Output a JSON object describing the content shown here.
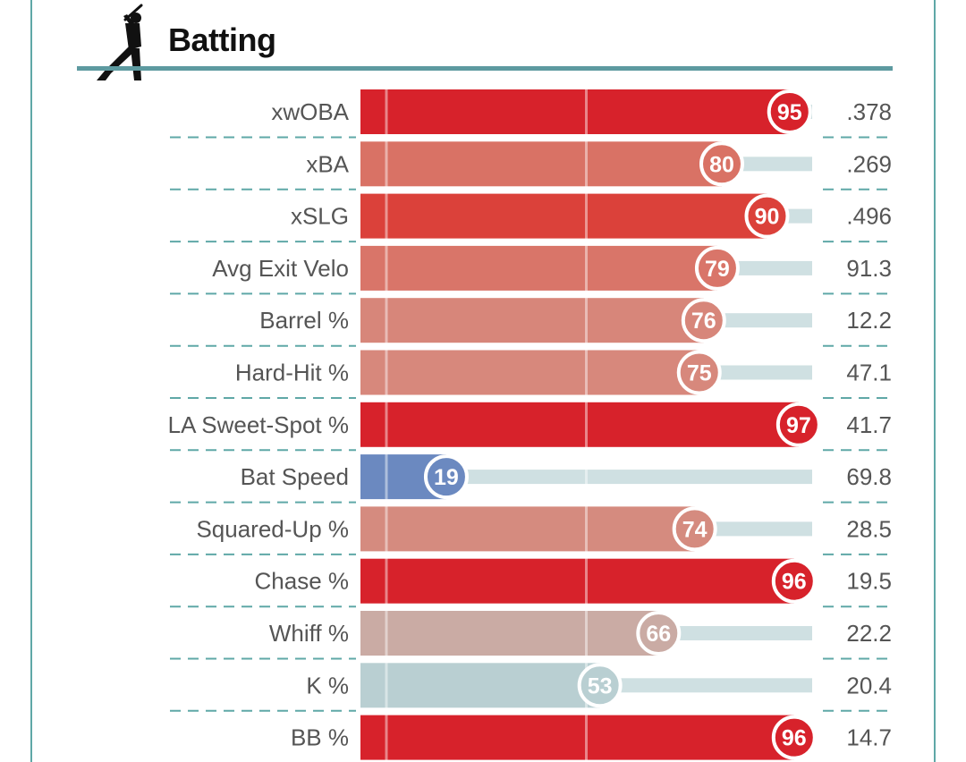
{
  "section": {
    "title": "Batting",
    "icon": "batter-silhouette-icon"
  },
  "colors": {
    "teal_border": "#5fa8a7",
    "track": "#cfe0e2",
    "value_text": "#555555"
  },
  "chart_data": {
    "type": "bar",
    "orientation": "horizontal",
    "title": "Batting",
    "xlim": [
      0,
      100
    ],
    "reference_lines": [
      50
    ],
    "metrics": [
      {
        "label": "xwOBA",
        "percentile": 95,
        "value": ".378",
        "color": "#d7222b"
      },
      {
        "label": "xBA",
        "percentile": 80,
        "value": ".269",
        "color": "#d97265"
      },
      {
        "label": "xSLG",
        "percentile": 90,
        "value": ".496",
        "color": "#db413a"
      },
      {
        "label": "Avg Exit Velo",
        "percentile": 79,
        "value": "91.3",
        "color": "#d97569"
      },
      {
        "label": "Barrel %",
        "percentile": 76,
        "value": "12.2",
        "color": "#d7867a"
      },
      {
        "label": "Hard-Hit %",
        "percentile": 75,
        "value": "47.1",
        "color": "#d7887c"
      },
      {
        "label": "LA Sweet-Spot %",
        "percentile": 97,
        "value": "41.7",
        "color": "#d7222b"
      },
      {
        "label": "Bat Speed",
        "percentile": 19,
        "value": "69.8",
        "color": "#6b89c0"
      },
      {
        "label": "Squared-Up %",
        "percentile": 74,
        "value": "28.5",
        "color": "#d58b7f"
      },
      {
        "label": "Chase %",
        "percentile": 96,
        "value": "19.5",
        "color": "#d7222b"
      },
      {
        "label": "Whiff %",
        "percentile": 66,
        "value": "22.2",
        "color": "#caaba4"
      },
      {
        "label": "K %",
        "percentile": 53,
        "value": "20.4",
        "color": "#b9cfd2"
      },
      {
        "label": "BB %",
        "percentile": 96,
        "value": "14.7",
        "color": "#d7222b"
      }
    ]
  }
}
